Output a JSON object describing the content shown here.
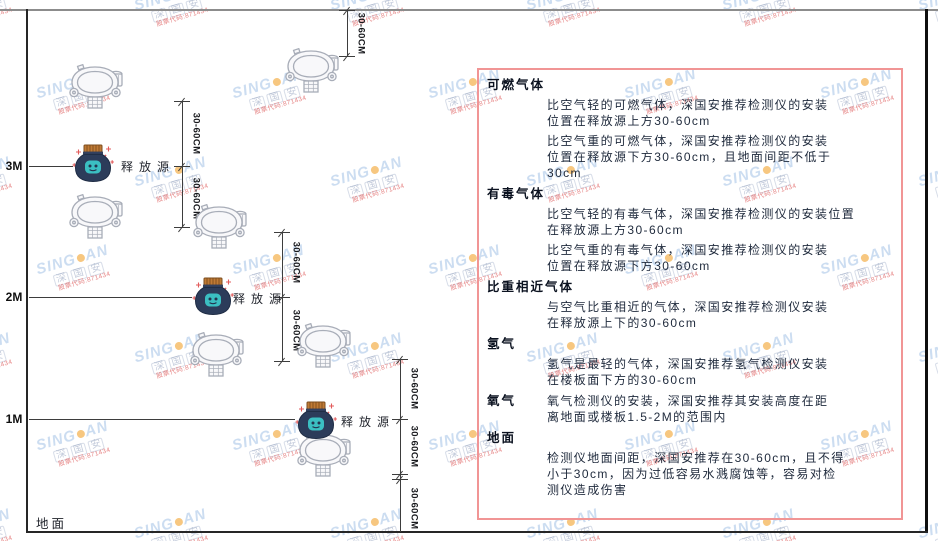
{
  "watermark": {
    "brand_left": "SING",
    "brand_right": "AN",
    "brand_dot_color": "#f2a93c",
    "company": "深国安",
    "stock_line": "股票代码:871434"
  },
  "diagram": {
    "level_labels": [
      "3M",
      "2M",
      "1M"
    ],
    "release_source_label": "释放源",
    "dimension_label": "30-60CM",
    "ground_label": "地面"
  },
  "panel": {
    "border_color": "#f19595",
    "sections": [
      {
        "heading": "可燃气体",
        "inline": false,
        "paras": [
          [
            "比空气轻的可燃气体，深国安推荐检测仪的安装",
            "位置在释放源上方30-60cm"
          ],
          [
            "比空气重的可燃气体，深国安推荐检测仪的安装",
            "位置在释放源下方30-60cm，且地面间距不低于",
            "30cm"
          ]
        ]
      },
      {
        "heading": "有毒气体",
        "inline": false,
        "paras": [
          [
            "比空气轻的有毒气体，深国安推荐检测仪的安装位置",
            "在释放源上方30-60cm"
          ],
          [
            "比空气重的有毒气体，深国安推荐检测仪的安装",
            "位置在释放源下方30-60cm"
          ]
        ]
      },
      {
        "heading": "比重相近气体",
        "inline": false,
        "paras": [
          [
            "与空气比重相近的气体，深国安推荐检测仪安装",
            "在释放源上下的30-60cm"
          ]
        ]
      },
      {
        "heading": "氢气",
        "inline": false,
        "paras": [
          [
            "氢气是最轻的气体，深国安推荐氢气检测仪安装",
            "在楼板面下方的30-60cm"
          ]
        ]
      },
      {
        "heading": "氧气",
        "inline": true,
        "paras": [
          [
            "氧气检测仪的安装，深国安推荐其安装高度在距",
            "离地面或楼板1.5-2M的范围内"
          ]
        ]
      },
      {
        "heading": "地面",
        "inline": false,
        "paras": [
          [
            "检测仪地面间距，深国安推荐在30-60cm，且不得",
            "小于30cm，因为过低容易水溅腐蚀等，容易对检",
            "测仪造成伤害"
          ]
        ]
      }
    ]
  }
}
